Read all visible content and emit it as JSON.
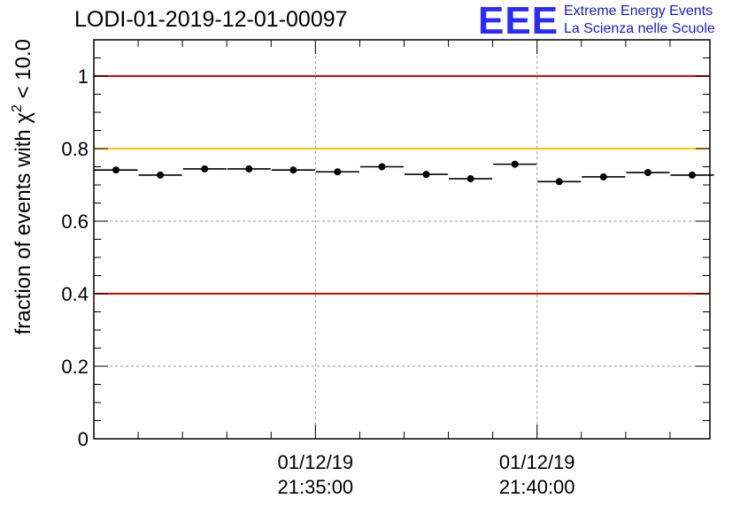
{
  "header": {
    "title": "LODI-01-2019-12-01-00097"
  },
  "logo": {
    "mark": "EEE",
    "line1": "Extreme Energy Events",
    "line2": "La Scienza nelle Scuole",
    "color": "#2a2aff"
  },
  "chart_data": {
    "type": "scatter",
    "ylabel_prefix": "fraction of events with χ",
    "ylabel_sup": "2",
    "ylabel_suffix": " < 10.0",
    "ylim": [
      0,
      1.1
    ],
    "yticks": [
      0,
      0.2,
      0.4,
      0.6,
      0.8,
      1
    ],
    "ytick_labels": [
      "0",
      "0.2",
      "0.4",
      "0.6",
      "0.8",
      "1"
    ],
    "xlim_minutes": [
      -5.0,
      8.9
    ],
    "xticks": [
      {
        "minute": 0,
        "date": "01/12/19",
        "time": "21:35:00"
      },
      {
        "minute": 5,
        "date": "01/12/19",
        "time": "21:40:00"
      }
    ],
    "grid": true,
    "reference_lines": [
      {
        "y": 1.0,
        "color": "#e00000"
      },
      {
        "y": 0.8,
        "color": "#ffc400"
      },
      {
        "y": 0.4,
        "color": "#e00000"
      }
    ],
    "series": [
      {
        "bin_width_minutes": 0.98,
        "points": [
          {
            "x": -4.5,
            "y": 0.741
          },
          {
            "x": -3.5,
            "y": 0.727
          },
          {
            "x": -2.5,
            "y": 0.744
          },
          {
            "x": -1.5,
            "y": 0.744
          },
          {
            "x": -0.5,
            "y": 0.741
          },
          {
            "x": 0.5,
            "y": 0.736
          },
          {
            "x": 1.5,
            "y": 0.75
          },
          {
            "x": 2.5,
            "y": 0.729
          },
          {
            "x": 3.5,
            "y": 0.717
          },
          {
            "x": 4.5,
            "y": 0.757
          },
          {
            "x": 5.5,
            "y": 0.709
          },
          {
            "x": 6.5,
            "y": 0.722
          },
          {
            "x": 7.5,
            "y": 0.734
          },
          {
            "x": 8.5,
            "y": 0.727
          }
        ]
      }
    ]
  }
}
